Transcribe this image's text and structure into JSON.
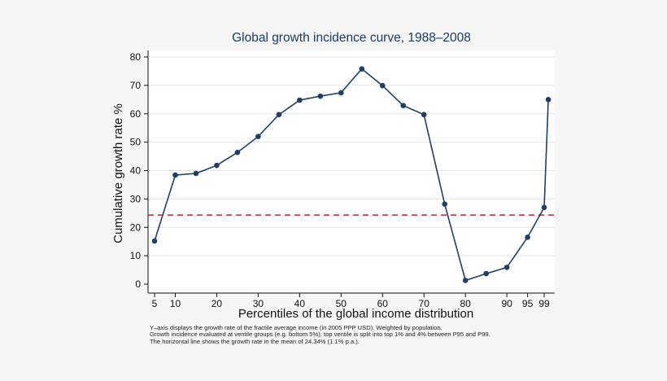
{
  "chart_data": {
    "type": "line",
    "title": "Global growth incidence curve, 1988–2008",
    "xlabel": "Percentiles of the global income distribution",
    "ylabel": "Cumulative growth rate %",
    "xlim": [
      4,
      101
    ],
    "ylim": [
      0,
      82
    ],
    "x_ticks": [
      5,
      10,
      20,
      30,
      40,
      50,
      60,
      70,
      80,
      90,
      95,
      99
    ],
    "y_ticks": [
      0,
      10,
      20,
      30,
      40,
      50,
      60,
      70,
      80
    ],
    "grid": true,
    "series": [
      {
        "x": [
          5,
          10,
          15,
          20,
          25,
          30,
          35,
          40,
          45,
          50,
          55,
          60,
          65,
          70,
          75,
          80,
          85,
          90,
          95,
          99,
          100
        ],
        "values": [
          15.2,
          38.4,
          39.0,
          41.8,
          46.4,
          52.0,
          59.7,
          64.8,
          66.2,
          67.4,
          75.8,
          69.9,
          62.9,
          59.7,
          28.2,
          1.3,
          3.7,
          5.9,
          16.5,
          27.0,
          65.0
        ],
        "color": "#1f3f66"
      }
    ],
    "reference_line": {
      "y": 24.34,
      "color": "#b02a3a",
      "style": "dashed"
    },
    "notes": [
      "Y–axis displays the growth rate of the fractile average income (in 2005 PPP USD). Weighted by population.",
      "Growth incidence evaluated at ventile groups (e.g. bottom 5%); top ventile is split into top 1% and 4% between P95 and P99.",
      "The horizontal line shows the growth rate in the mean of 24.34% (1.1% p.a.)."
    ]
  }
}
